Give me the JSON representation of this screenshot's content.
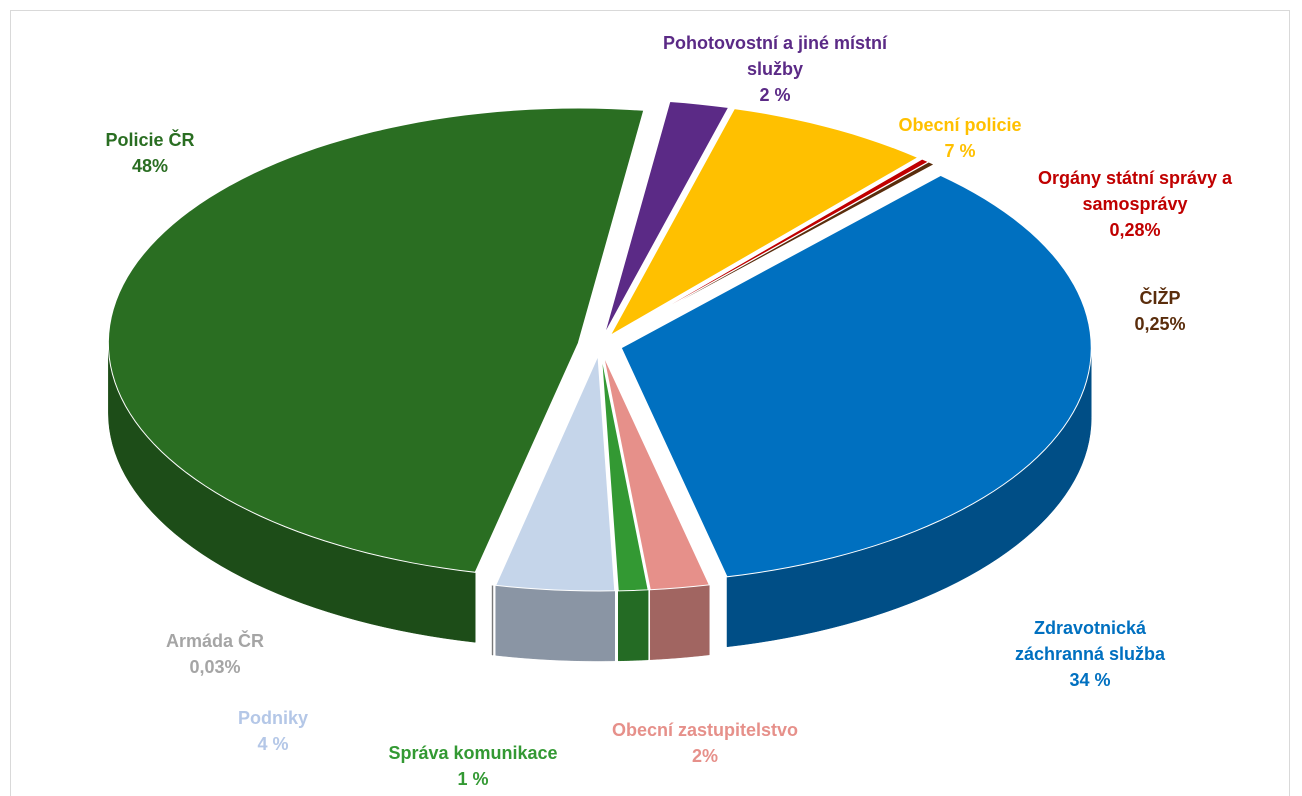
{
  "chart_data": {
    "type": "pie",
    "categories": [
      "Pohotovostní a jiné místní služby",
      "Obecní policie",
      "Orgány státní správy a samosprávy",
      "ČIŽP",
      "Zdravotnická záchranná služba",
      "Obecní zastupitelstvo",
      "Správa komunikace",
      "Podniky",
      "Armáda ČR",
      "Policie ČR"
    ],
    "values": [
      2,
      7,
      0.28,
      0.25,
      34,
      2,
      1,
      4,
      0.03,
      48
    ],
    "value_labels": [
      "2 %",
      "7 %",
      "0,28%",
      "0,25%",
      "34 %",
      "2%",
      "1 %",
      "4 %",
      "0,03%",
      "48%"
    ],
    "colors": [
      "#5b2a86",
      "#ffc000",
      "#c00000",
      "#5a2d0c",
      "#0070c0",
      "#e6908a",
      "#339933",
      "#c5d5ea",
      "#a5a5a5",
      "#2a6e22"
    ]
  }
}
